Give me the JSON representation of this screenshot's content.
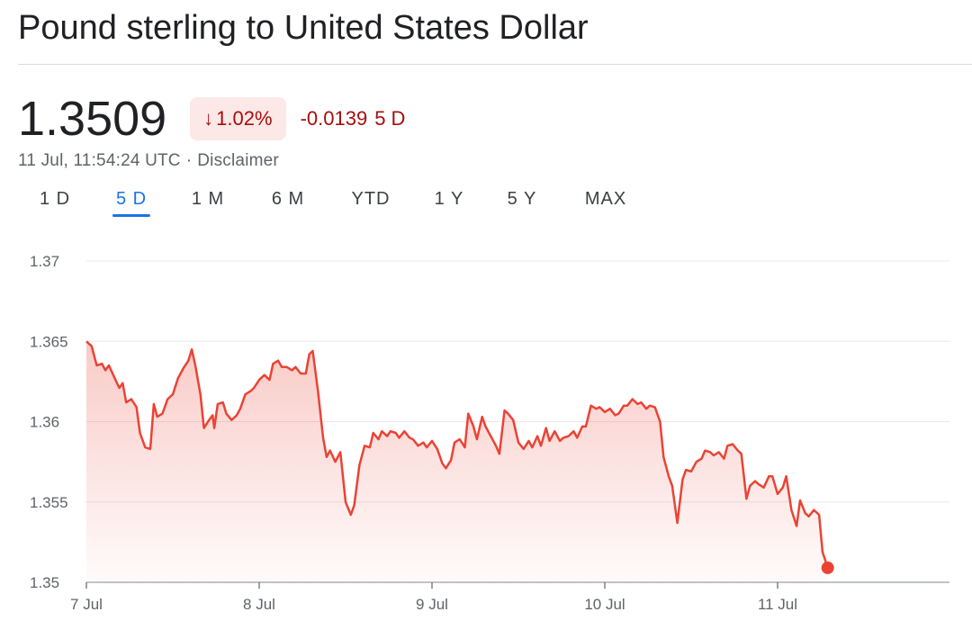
{
  "header": {
    "title": "Pound sterling to United States Dollar"
  },
  "quote": {
    "price": "1.3509",
    "change_percent": "1.02%",
    "change_arrow": "↓",
    "change_abs": "-0.0139",
    "change_period": "5 D",
    "timestamp": "11 Jul, 11:54:24 UTC",
    "separator": "·",
    "disclaimer": "Disclaimer"
  },
  "ranges": [
    {
      "label": "1 D",
      "active": false
    },
    {
      "label": "5 D",
      "active": true
    },
    {
      "label": "1 M",
      "active": false
    },
    {
      "label": "6 M",
      "active": false
    },
    {
      "label": "YTD",
      "active": false
    },
    {
      "label": "1 Y",
      "active": false
    },
    {
      "label": "5 Y",
      "active": false
    },
    {
      "label": "MAX",
      "active": false
    }
  ],
  "colors": {
    "negative": "#ea4335",
    "negative_text": "#a50e0e",
    "badge_bg": "#fce8e6",
    "accent": "#1a73e8"
  },
  "chart_data": {
    "type": "area",
    "title": "",
    "xlabel": "",
    "ylabel": "",
    "ylim": [
      1.35,
      1.37
    ],
    "yticks": [
      1.35,
      1.355,
      1.36,
      1.365,
      1.37
    ],
    "ytick_labels": [
      "1.35",
      "1.355",
      "1.36",
      "1.365",
      "1.37"
    ],
    "xlim": [
      0,
      5.0
    ],
    "xticks": [
      0,
      1,
      2,
      3,
      4
    ],
    "xtick_labels": [
      "7 Jul",
      "8 Jul",
      "9 Jul",
      "10 Jul",
      "11 Jul"
    ],
    "grid": true,
    "series": [
      {
        "values": [
          [
            0.0,
            1.365
          ],
          [
            0.03,
            1.3647
          ],
          [
            0.06,
            1.3635
          ],
          [
            0.09,
            1.3636
          ],
          [
            0.11,
            1.3632
          ],
          [
            0.13,
            1.3635
          ],
          [
            0.16,
            1.3628
          ],
          [
            0.19,
            1.3621
          ],
          [
            0.21,
            1.3624
          ],
          [
            0.23,
            1.3612
          ],
          [
            0.26,
            1.3614
          ],
          [
            0.29,
            1.3609
          ],
          [
            0.31,
            1.3593
          ],
          [
            0.34,
            1.3584
          ],
          [
            0.37,
            1.3583
          ],
          [
            0.39,
            1.3611
          ],
          [
            0.41,
            1.3603
          ],
          [
            0.44,
            1.3605
          ],
          [
            0.47,
            1.3614
          ],
          [
            0.5,
            1.3617
          ],
          [
            0.53,
            1.3627
          ],
          [
            0.56,
            1.3633
          ],
          [
            0.59,
            1.3638
          ],
          [
            0.61,
            1.3645
          ],
          [
            0.63,
            1.3635
          ],
          [
            0.66,
            1.3617
          ],
          [
            0.68,
            1.3596
          ],
          [
            0.71,
            1.3601
          ],
          [
            0.73,
            1.3604
          ],
          [
            0.74,
            1.3596
          ],
          [
            0.76,
            1.3611
          ],
          [
            0.79,
            1.3612
          ],
          [
            0.81,
            1.3605
          ],
          [
            0.84,
            1.3601
          ],
          [
            0.87,
            1.3604
          ],
          [
            0.89,
            1.3608
          ],
          [
            0.92,
            1.3617
          ],
          [
            0.95,
            1.3619
          ],
          [
            0.97,
            1.3621
          ],
          [
            1.0,
            1.3626
          ],
          [
            1.03,
            1.3629
          ],
          [
            1.06,
            1.3626
          ],
          [
            1.08,
            1.3636
          ],
          [
            1.11,
            1.3638
          ],
          [
            1.13,
            1.3634
          ],
          [
            1.16,
            1.3634
          ],
          [
            1.19,
            1.3632
          ],
          [
            1.21,
            1.3634
          ],
          [
            1.24,
            1.363
          ],
          [
            1.27,
            1.363
          ],
          [
            1.29,
            1.3642
          ],
          [
            1.31,
            1.3644
          ],
          [
            1.34,
            1.3619
          ],
          [
            1.37,
            1.359
          ],
          [
            1.39,
            1.3578
          ],
          [
            1.41,
            1.3582
          ],
          [
            1.44,
            1.3575
          ],
          [
            1.47,
            1.3581
          ],
          [
            1.5,
            1.355
          ],
          [
            1.53,
            1.3542
          ],
          [
            1.55,
            1.3548
          ],
          [
            1.58,
            1.3573
          ],
          [
            1.61,
            1.3585
          ],
          [
            1.64,
            1.3584
          ],
          [
            1.66,
            1.3593
          ],
          [
            1.69,
            1.3589
          ],
          [
            1.71,
            1.3594
          ],
          [
            1.74,
            1.3591
          ],
          [
            1.76,
            1.3594
          ],
          [
            1.79,
            1.3593
          ],
          [
            1.81,
            1.359
          ],
          [
            1.84,
            1.3594
          ],
          [
            1.87,
            1.359
          ],
          [
            1.89,
            1.3589
          ],
          [
            1.92,
            1.3585
          ],
          [
            1.95,
            1.3587
          ],
          [
            1.97,
            1.3584
          ],
          [
            2.0,
            1.3588
          ],
          [
            2.03,
            1.3583
          ],
          [
            2.06,
            1.3574
          ],
          [
            2.08,
            1.3571
          ],
          [
            2.11,
            1.3576
          ],
          [
            2.13,
            1.3587
          ],
          [
            2.16,
            1.3589
          ],
          [
            2.19,
            1.3584
          ],
          [
            2.21,
            1.3605
          ],
          [
            2.24,
            1.3597
          ],
          [
            2.26,
            1.3589
          ],
          [
            2.29,
            1.3603
          ],
          [
            2.31,
            1.3597
          ],
          [
            2.34,
            1.3591
          ],
          [
            2.37,
            1.3585
          ],
          [
            2.39,
            1.358
          ],
          [
            2.42,
            1.3607
          ],
          [
            2.44,
            1.3605
          ],
          [
            2.47,
            1.3601
          ],
          [
            2.5,
            1.3587
          ],
          [
            2.53,
            1.3583
          ],
          [
            2.56,
            1.3588
          ],
          [
            2.58,
            1.3584
          ],
          [
            2.61,
            1.3591
          ],
          [
            2.63,
            1.3585
          ],
          [
            2.66,
            1.3596
          ],
          [
            2.68,
            1.3588
          ],
          [
            2.71,
            1.3594
          ],
          [
            2.74,
            1.3588
          ],
          [
            2.76,
            1.359
          ],
          [
            2.79,
            1.3591
          ],
          [
            2.82,
            1.3594
          ],
          [
            2.84,
            1.359
          ],
          [
            2.87,
            1.3597
          ],
          [
            2.89,
            1.3597
          ],
          [
            2.92,
            1.361
          ],
          [
            2.95,
            1.3608
          ],
          [
            2.97,
            1.3609
          ],
          [
            3.0,
            1.3606
          ],
          [
            3.03,
            1.3608
          ],
          [
            3.06,
            1.3604
          ],
          [
            3.08,
            1.3605
          ],
          [
            3.11,
            1.361
          ],
          [
            3.13,
            1.361
          ],
          [
            3.16,
            1.3614
          ],
          [
            3.19,
            1.3611
          ],
          [
            3.21,
            1.3612
          ],
          [
            3.24,
            1.3608
          ],
          [
            3.26,
            1.361
          ],
          [
            3.29,
            1.3609
          ],
          [
            3.32,
            1.36
          ],
          [
            3.34,
            1.3578
          ],
          [
            3.37,
            1.3566
          ],
          [
            3.39,
            1.356
          ],
          [
            3.42,
            1.3537
          ],
          [
            3.45,
            1.3564
          ],
          [
            3.47,
            1.357
          ],
          [
            3.5,
            1.3569
          ],
          [
            3.53,
            1.3575
          ],
          [
            3.56,
            1.3577
          ],
          [
            3.58,
            1.3582
          ],
          [
            3.61,
            1.3581
          ],
          [
            3.63,
            1.3579
          ],
          [
            3.66,
            1.3581
          ],
          [
            3.69,
            1.3577
          ],
          [
            3.71,
            1.3585
          ],
          [
            3.74,
            1.3586
          ],
          [
            3.77,
            1.3582
          ],
          [
            3.79,
            1.358
          ],
          [
            3.82,
            1.3552
          ],
          [
            3.84,
            1.356
          ],
          [
            3.87,
            1.3563
          ],
          [
            3.89,
            1.3561
          ],
          [
            3.92,
            1.3559
          ],
          [
            3.95,
            1.3566
          ],
          [
            3.97,
            1.3566
          ],
          [
            4.0,
            1.3555
          ],
          [
            4.03,
            1.3559
          ],
          [
            4.05,
            1.3566
          ],
          [
            4.08,
            1.3545
          ],
          [
            4.11,
            1.3535
          ],
          [
            4.13,
            1.3551
          ],
          [
            4.16,
            1.3543
          ],
          [
            4.18,
            1.3541
          ],
          [
            4.21,
            1.3545
          ],
          [
            4.24,
            1.3542
          ],
          [
            4.26,
            1.3519
          ],
          [
            4.29,
            1.3509
          ]
        ]
      }
    ]
  }
}
